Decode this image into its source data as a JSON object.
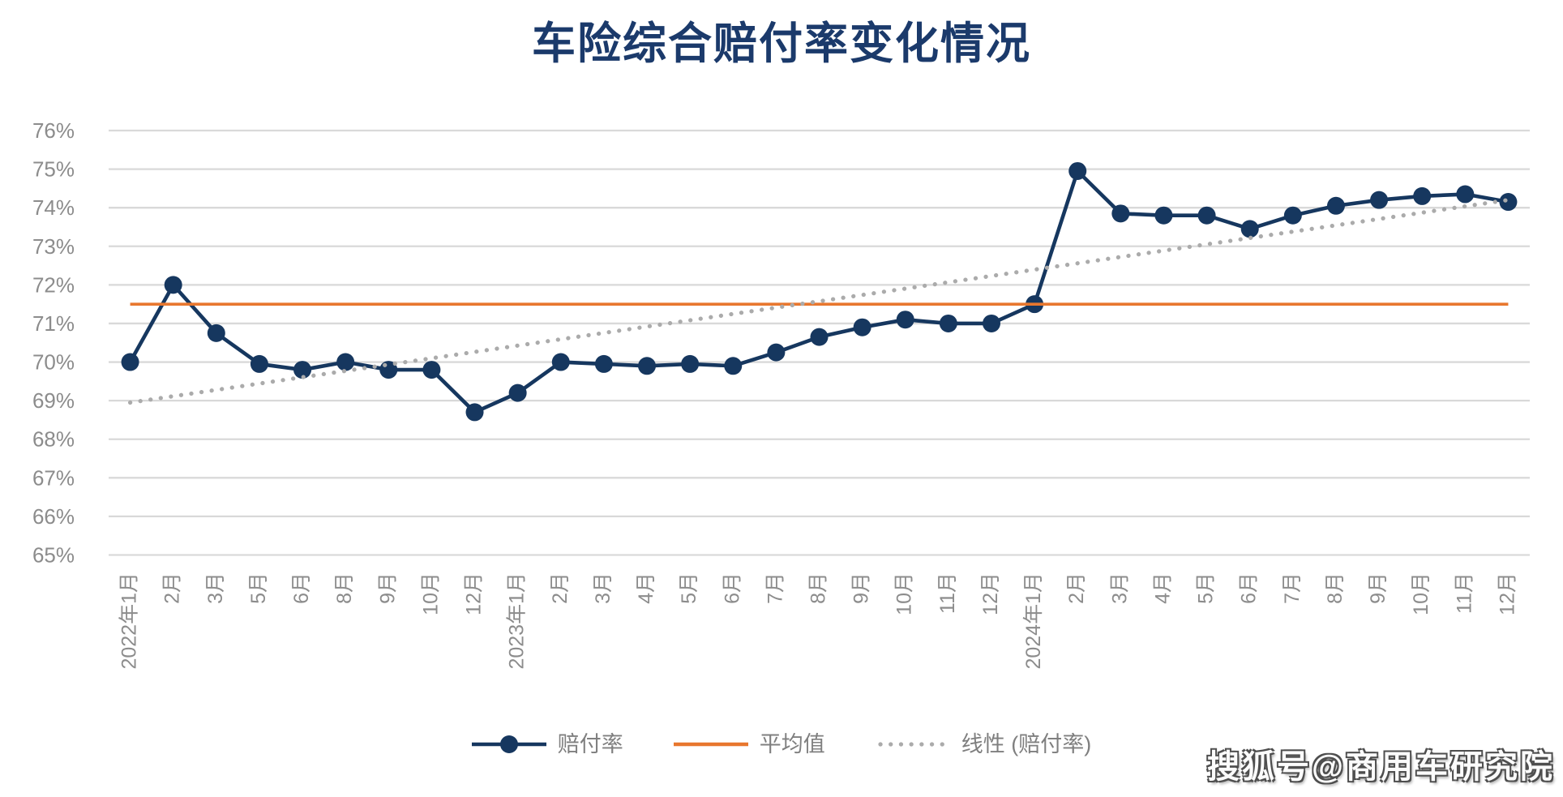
{
  "title": "车险综合赔付率变化情况",
  "watermark": "搜狐号@商用车研究院",
  "legend": [
    {
      "label": "赔付率",
      "swatch": "line-marker",
      "color": "#16375F"
    },
    {
      "label": "平均值",
      "swatch": "line",
      "color": "#E8772E"
    },
    {
      "label": "线性 (赔付率)",
      "swatch": "dotted",
      "color": "#ABABAB"
    }
  ],
  "colors": {
    "series": "#16375F",
    "average": "#E8772E",
    "trend": "#ABABAB",
    "grid": "#D9D9D9",
    "axis_text": "#8C8C8C",
    "title": "#1B3A6B"
  },
  "chart_data": {
    "type": "line",
    "title": "车险综合赔付率变化情况",
    "xlabel": "",
    "ylabel": "",
    "grid": true,
    "legend_position": "bottom",
    "ylim": [
      65,
      76
    ],
    "y_ticks": [
      "65%",
      "66%",
      "67%",
      "68%",
      "69%",
      "70%",
      "71%",
      "72%",
      "73%",
      "74%",
      "75%",
      "76%"
    ],
    "categories": [
      "2022年1月",
      "2月",
      "3月",
      "5月",
      "6月",
      "8月",
      "9月",
      "10月",
      "12月",
      "2023年1月",
      "2月",
      "3月",
      "4月",
      "5月",
      "6月",
      "7月",
      "8月",
      "9月",
      "10月",
      "11月",
      "12月",
      "2024年1月",
      "2月",
      "3月",
      "4月",
      "5月",
      "6月",
      "7月",
      "8月",
      "9月",
      "10月",
      "11月",
      "12月"
    ],
    "series": [
      {
        "name": "赔付率",
        "type": "line-markers",
        "color": "#16375F",
        "values": [
          70.0,
          72.0,
          70.75,
          69.95,
          69.8,
          70.0,
          69.8,
          69.8,
          68.7,
          69.2,
          70.0,
          69.95,
          69.9,
          69.95,
          69.9,
          70.25,
          70.65,
          70.9,
          71.1,
          71.0,
          71.0,
          71.5,
          74.95,
          73.85,
          73.8,
          73.8,
          73.45,
          73.8,
          74.05,
          74.2,
          74.3,
          74.35,
          74.15
        ]
      },
      {
        "name": "平均值",
        "type": "horizontal-line",
        "color": "#E8772E",
        "value": 71.5
      },
      {
        "name": "线性 (赔付率)",
        "type": "linear-trend",
        "color": "#ABABAB",
        "start": 68.95,
        "end": 74.2
      }
    ]
  }
}
